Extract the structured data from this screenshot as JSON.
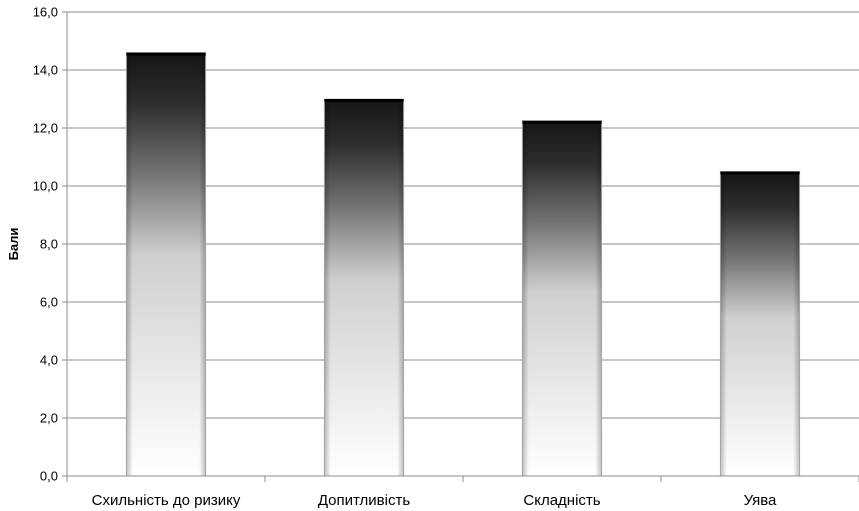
{
  "chart_data": {
    "type": "bar",
    "categories": [
      "Схильність до ризику",
      "Допитливість",
      "Складність",
      "Уява"
    ],
    "values": [
      14.6,
      13.0,
      12.25,
      10.5
    ],
    "ylabel": "Бали",
    "ylim": [
      0,
      16
    ],
    "yticks": [
      "0,0",
      "2,0",
      "4,0",
      "6,0",
      "8,0",
      "10,0",
      "12,0",
      "14,0",
      "16,0"
    ],
    "grid": true,
    "legend": "none"
  }
}
